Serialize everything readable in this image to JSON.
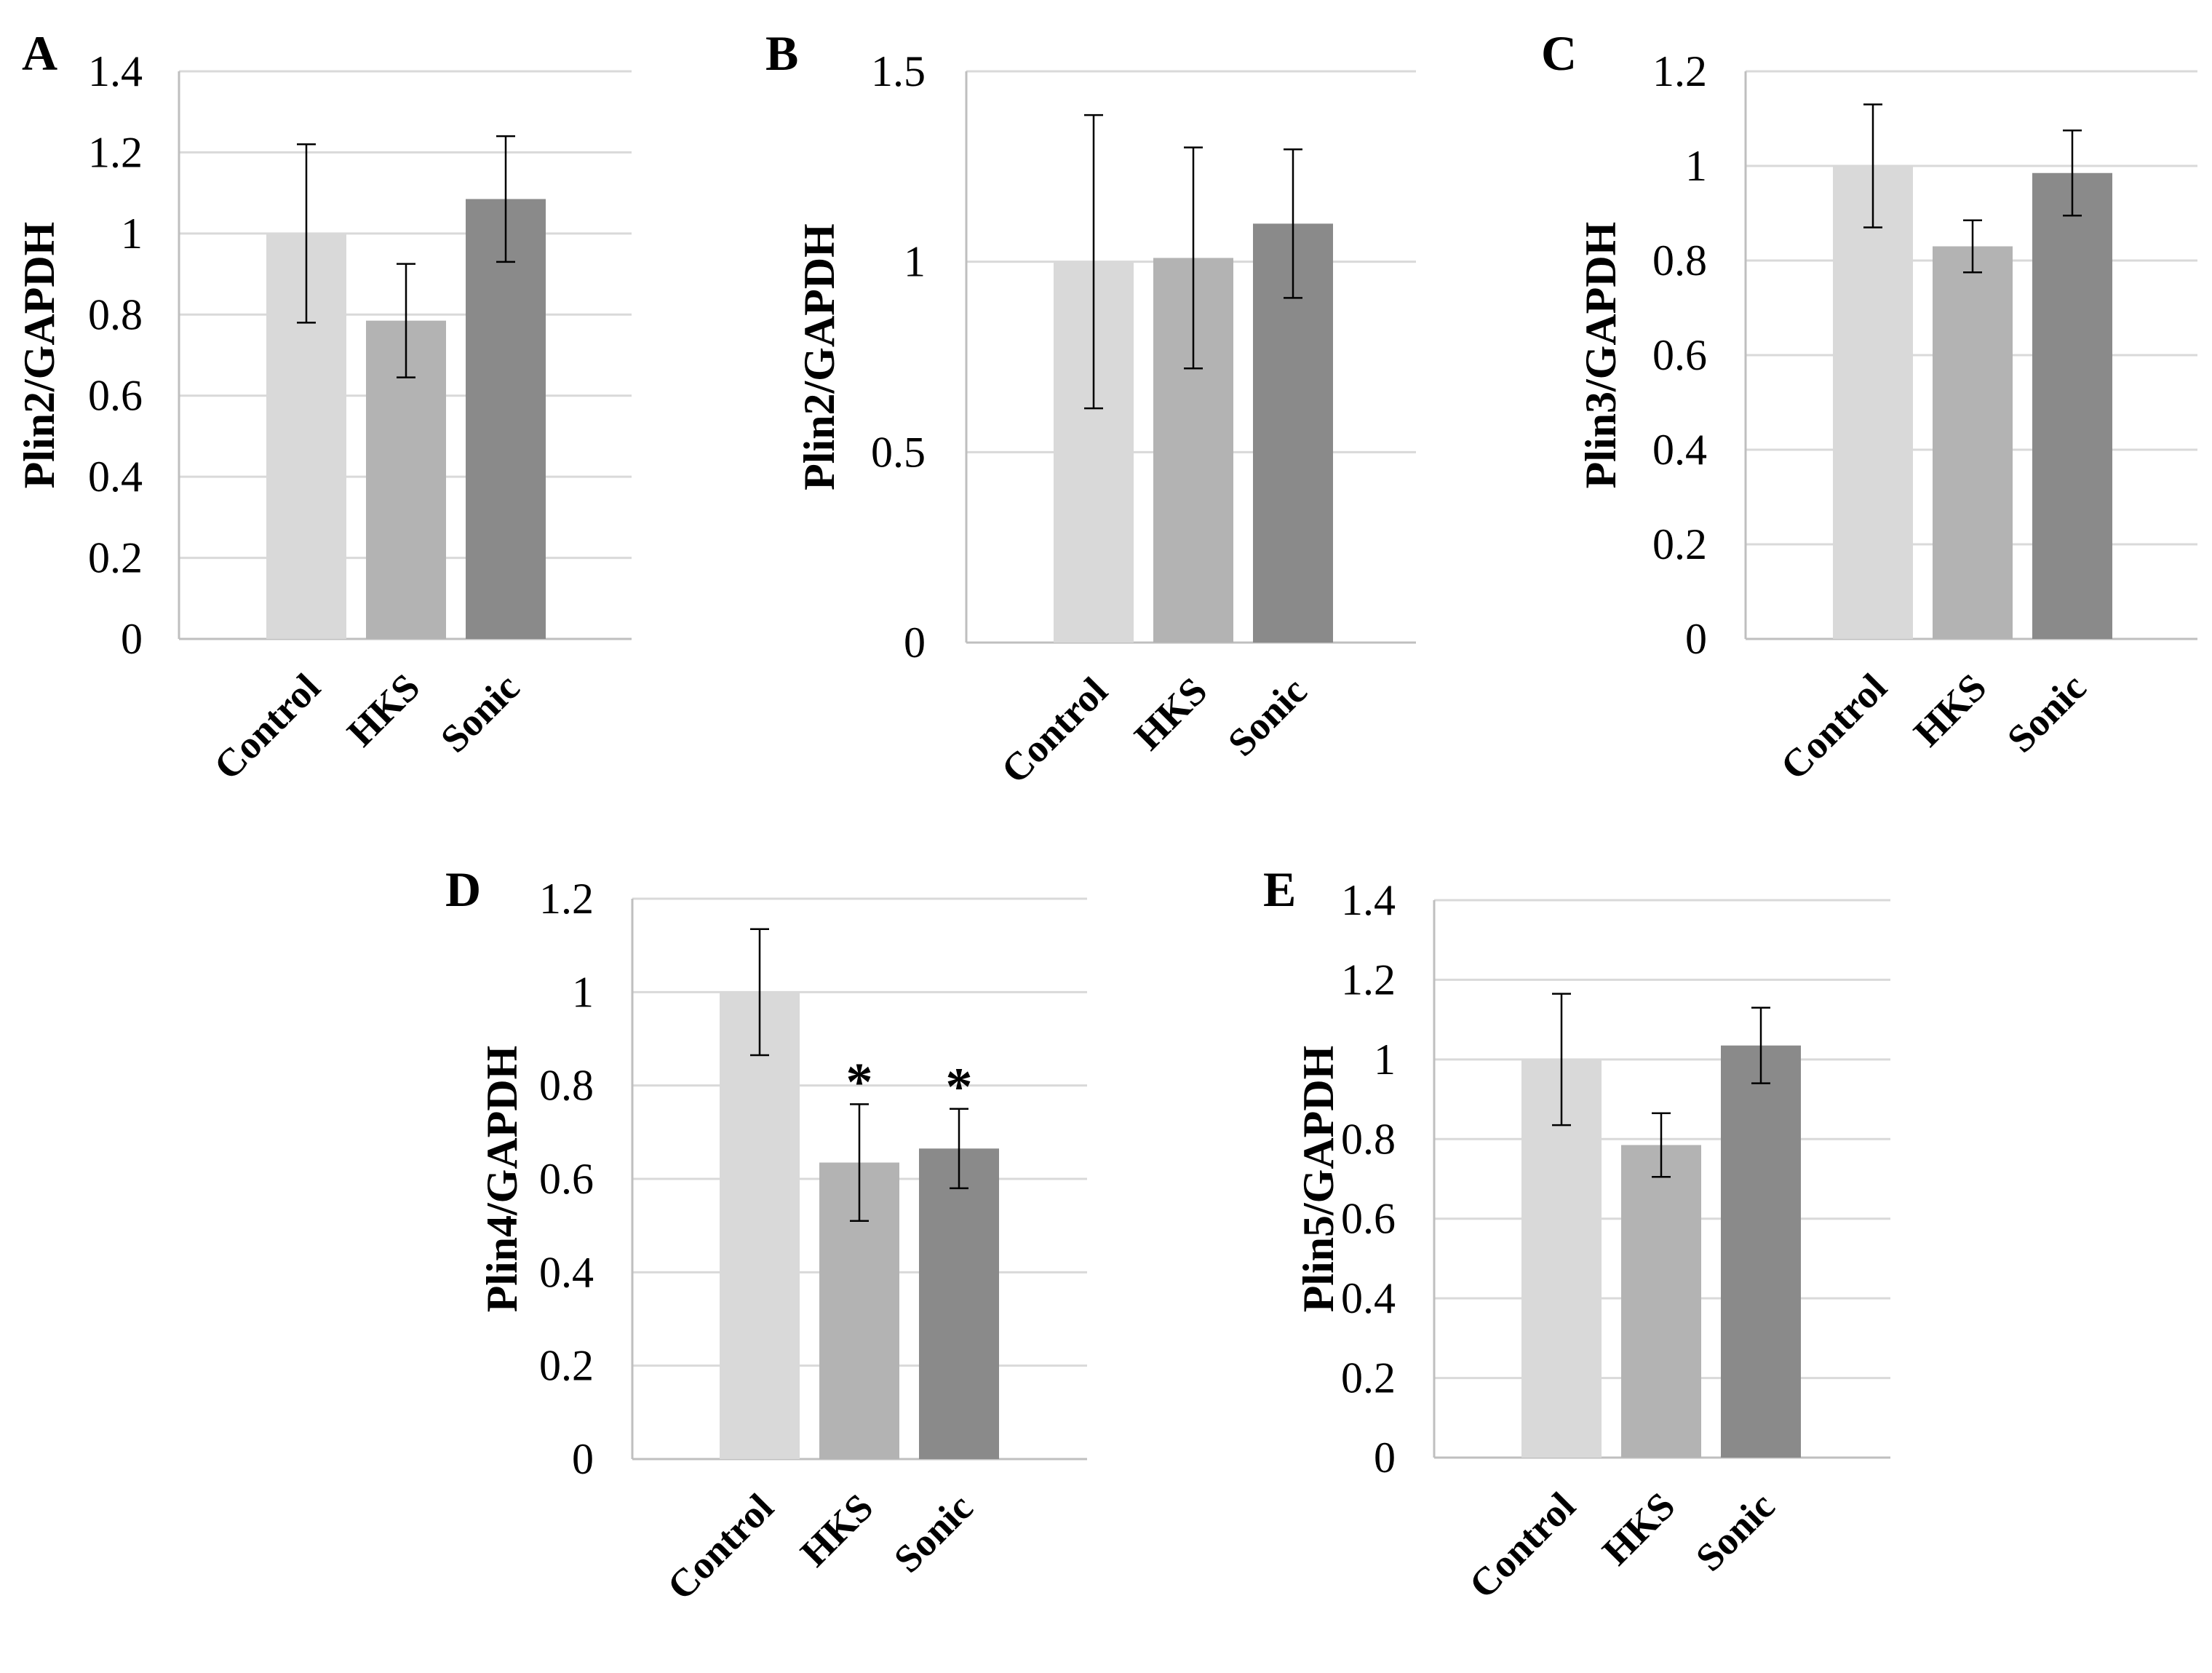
{
  "figure": {
    "background": "#ffffff"
  },
  "colors": {
    "Control": "#d9d9d9",
    "HKS": "#b3b3b3",
    "Sonic": "#8a8a8a",
    "gridline": "#d9d9d9",
    "axis": "#bfbfbf",
    "errorbar": "#000000"
  },
  "chart_data": [
    {
      "id": "A",
      "type": "bar",
      "panel_label": "A",
      "title": "",
      "xlabel": "",
      "ylabel": "Plin2/GAPDH",
      "categories": [
        "Control",
        "HKS",
        "Sonic"
      ],
      "values": [
        1.0,
        0.785,
        1.085
      ],
      "errors": [
        0.22,
        0.14,
        0.155
      ],
      "significance": [
        "",
        "",
        ""
      ],
      "ylim": [
        0,
        1.4
      ],
      "yticks": [
        0,
        0.2,
        0.4,
        0.6,
        0.8,
        1.0,
        1.2,
        1.4
      ],
      "ytick_labels": [
        "0",
        "0.2",
        "0.4",
        "0.6",
        "0.8",
        "1",
        "1.2",
        "1.4"
      ],
      "grid": true,
      "legend": "none"
    },
    {
      "id": "B",
      "type": "bar",
      "panel_label": "B",
      "title": "",
      "xlabel": "",
      "ylabel": "Plin2/GAPDH",
      "categories": [
        "Control",
        "HKS",
        "Sonic"
      ],
      "values": [
        1.0,
        1.01,
        1.1
      ],
      "errors": [
        0.385,
        0.29,
        0.195
      ],
      "significance": [
        "",
        "",
        ""
      ],
      "ylim": [
        0,
        1.5
      ],
      "yticks": [
        0,
        0.5,
        1.0,
        1.5
      ],
      "ytick_labels": [
        "0",
        "0.5",
        "1",
        "1.5"
      ],
      "grid": true,
      "legend": "none"
    },
    {
      "id": "C",
      "type": "bar",
      "panel_label": "C",
      "title": "",
      "xlabel": "",
      "ylabel": "Plin3/GAPDH",
      "categories": [
        "Control",
        "HKS",
        "Sonic"
      ],
      "values": [
        1.0,
        0.83,
        0.985
      ],
      "errors": [
        0.13,
        0.055,
        0.09
      ],
      "significance": [
        "",
        "",
        ""
      ],
      "ylim": [
        0,
        1.2
      ],
      "yticks": [
        0,
        0.2,
        0.4,
        0.6,
        0.8,
        1.0,
        1.2
      ],
      "ytick_labels": [
        "0",
        "0.2",
        "0.4",
        "0.6",
        "0.8",
        "1",
        "1.2"
      ],
      "grid": true,
      "legend": "none"
    },
    {
      "id": "D",
      "type": "bar",
      "panel_label": "D",
      "title": "",
      "xlabel": "",
      "ylabel": "Plin4/GAPDH",
      "categories": [
        "Control",
        "HKS",
        "Sonic"
      ],
      "values": [
        1.0,
        0.635,
        0.665
      ],
      "errors": [
        0.135,
        0.125,
        0.085
      ],
      "significance": [
        "",
        "*",
        "*"
      ],
      "ylim": [
        0,
        1.2
      ],
      "yticks": [
        0,
        0.2,
        0.4,
        0.6,
        0.8,
        1.0,
        1.2
      ],
      "ytick_labels": [
        "0",
        "0.2",
        "0.4",
        "0.6",
        "0.8",
        "1",
        "1.2"
      ],
      "grid": true,
      "legend": "none"
    },
    {
      "id": "E",
      "type": "bar",
      "panel_label": "E",
      "title": "",
      "xlabel": "",
      "ylabel": "Plin5/GAPDH",
      "categories": [
        "Control",
        "HKS",
        "Sonic"
      ],
      "values": [
        1.0,
        0.785,
        1.035
      ],
      "errors": [
        0.165,
        0.08,
        0.095
      ],
      "significance": [
        "",
        "",
        ""
      ],
      "ylim": [
        0,
        1.4
      ],
      "yticks": [
        0,
        0.2,
        0.4,
        0.6,
        0.8,
        1.0,
        1.2,
        1.4
      ],
      "ytick_labels": [
        "0",
        "0.2",
        "0.4",
        "0.6",
        "0.8",
        "1",
        "1.2",
        "1.4"
      ],
      "grid": true,
      "legend": "none"
    }
  ]
}
